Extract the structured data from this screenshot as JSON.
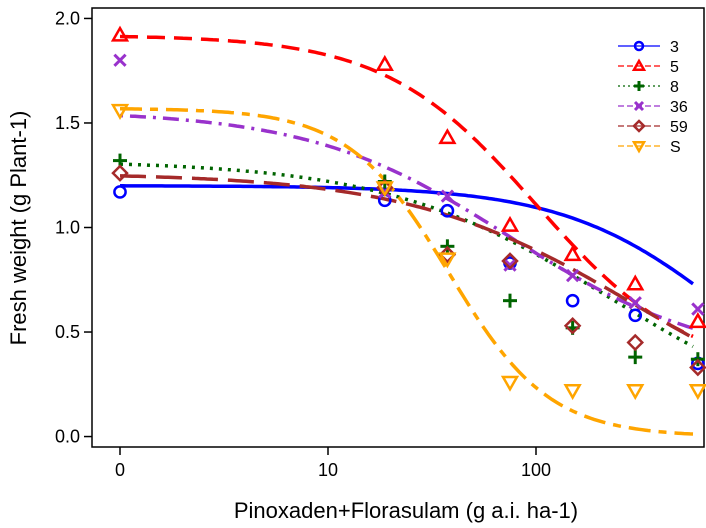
{
  "chart_data": {
    "type": "scatter",
    "title": "",
    "xlabel": "Pinoxaden+Florasulam (g a.i. ha-1)",
    "ylabel": "Fresh weight (g Plant-1)",
    "x_scale": "log",
    "x_ticks": [
      {
        "value": 0,
        "label": "0"
      },
      {
        "value": 10,
        "label": "10"
      },
      {
        "value": 100,
        "label": "100"
      }
    ],
    "y_ticks": [
      {
        "value": 0.0,
        "label": "0.0"
      },
      {
        "value": 0.5,
        "label": "0.5"
      },
      {
        "value": 1.0,
        "label": "1.0"
      },
      {
        "value": 1.5,
        "label": "1.5"
      },
      {
        "value": 2.0,
        "label": "2.0"
      }
    ],
    "ylim": [
      -0.05,
      2.05
    ],
    "grid": false,
    "legend": "top-right",
    "x": [
      0,
      18.75,
      37.5,
      75,
      150,
      300,
      600
    ],
    "series": [
      {
        "name": "3",
        "color": "#0000ff",
        "marker": "circle",
        "line_style": "solid",
        "points": [
          1.17,
          1.13,
          1.08,
          0.83,
          0.65,
          0.58,
          0.35
        ],
        "fit": {
          "upper": 1.2,
          "lower": 0.0,
          "ed50": 850,
          "slope": 1.1
        }
      },
      {
        "name": "5",
        "color": "#ff0000",
        "marker": "triangle-up",
        "line_style": "dashed",
        "points": [
          1.92,
          1.78,
          1.43,
          1.01,
          0.87,
          0.73,
          0.55
        ],
        "fit": {
          "upper": 1.92,
          "lower": 0.3,
          "ed50": 100,
          "slope": 1.2
        }
      },
      {
        "name": "8",
        "color": "#006400",
        "marker": "plus",
        "line_style": "dotted",
        "points": [
          1.32,
          1.22,
          0.91,
          0.65,
          0.52,
          0.38,
          0.37
        ],
        "fit": {
          "upper": 1.32,
          "lower": 0.0,
          "ed50": 230,
          "slope": 0.8
        }
      },
      {
        "name": "36",
        "color": "#9932cc",
        "marker": "cross",
        "line_style": "dotdash",
        "points": [
          1.8,
          1.17,
          1.15,
          0.82,
          0.77,
          0.64,
          0.61
        ],
        "fit": {
          "upper": 1.56,
          "lower": 0.35,
          "ed50": 75,
          "slope": 0.9
        }
      },
      {
        "name": "59",
        "color": "#a52a2a",
        "marker": "diamond",
        "line_style": "longdash",
        "points": [
          1.26,
          1.19,
          0.87,
          0.84,
          0.53,
          0.45,
          0.33
        ],
        "fit": {
          "upper": 1.26,
          "lower": 0.0,
          "ed50": 300,
          "slope": 0.8
        }
      },
      {
        "name": "S",
        "color": "#ffa500",
        "marker": "triangle-down",
        "line_style": "twodash",
        "points": [
          1.56,
          1.19,
          0.85,
          0.26,
          0.22,
          0.22,
          0.22
        ],
        "fit": {
          "upper": 1.57,
          "lower": 0.0,
          "ed50": 38,
          "slope": 1.8
        }
      }
    ]
  }
}
